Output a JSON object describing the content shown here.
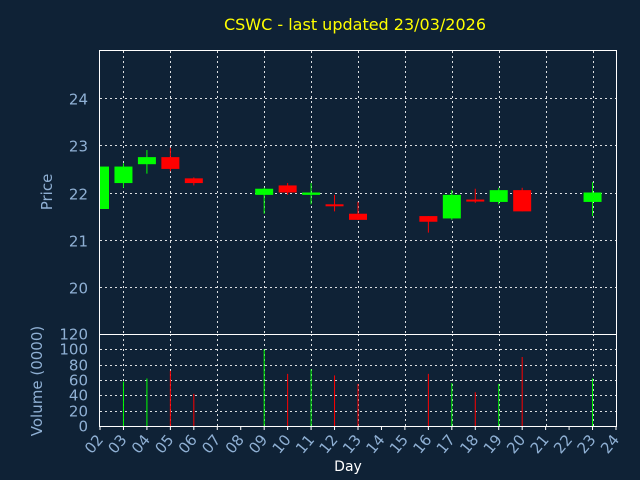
{
  "chart_data": {
    "type": "candlestick",
    "title": "CSWC - last updated 23/03/2026",
    "xlabel": "Day",
    "price_axis": {
      "label": "Price",
      "ylim": [
        19,
        25
      ],
      "ticks": [
        20,
        21,
        22,
        23,
        24
      ]
    },
    "volume_axis": {
      "label": "Volume (0000)",
      "ylim": [
        0,
        120
      ],
      "ticks": [
        0,
        20,
        40,
        60,
        80,
        100,
        120
      ]
    },
    "x_ticks": [
      "02",
      "03",
      "04",
      "05",
      "06",
      "07",
      "08",
      "09",
      "10",
      "11",
      "12",
      "13",
      "14",
      "15",
      "16",
      "17",
      "18",
      "19",
      "20",
      "21",
      "22",
      "23",
      "24"
    ],
    "grid": true,
    "colors": {
      "up": "#00ff00",
      "down": "#ff0000",
      "title": "#ffff00",
      "axis_text": "#8fb0d4",
      "background": "#0f2236"
    },
    "candles": [
      {
        "day": "02",
        "open": 21.65,
        "close": 22.55,
        "high": 22.55,
        "low": 21.65,
        "volume": 0
      },
      {
        "day": "03",
        "open": 22.2,
        "close": 22.55,
        "high": 22.62,
        "low": 22.1,
        "volume": 58
      },
      {
        "day": "04",
        "open": 22.6,
        "close": 22.75,
        "high": 22.9,
        "low": 22.4,
        "volume": 62
      },
      {
        "day": "05",
        "open": 22.75,
        "close": 22.5,
        "high": 22.95,
        "low": 22.45,
        "volume": 72
      },
      {
        "day": "06",
        "open": 22.3,
        "close": 22.2,
        "high": 22.32,
        "low": 22.15,
        "volume": 42
      },
      {
        "day": "09",
        "open": 21.95,
        "close": 22.08,
        "high": 22.1,
        "low": 21.55,
        "volume": 100
      },
      {
        "day": "10",
        "open": 22.15,
        "close": 22.0,
        "high": 22.2,
        "low": 21.95,
        "volume": 68
      },
      {
        "day": "11",
        "open": 21.95,
        "close": 22.0,
        "high": 22.2,
        "low": 21.75,
        "volume": 74
      },
      {
        "day": "12",
        "open": 21.75,
        "close": 21.73,
        "high": 21.95,
        "low": 21.6,
        "volume": 66
      },
      {
        "day": "13",
        "open": 21.55,
        "close": 21.42,
        "high": 21.8,
        "low": 21.42,
        "volume": 55
      },
      {
        "day": "16",
        "open": 21.5,
        "close": 21.38,
        "high": 21.5,
        "low": 21.15,
        "volume": 68
      },
      {
        "day": "17",
        "open": 21.45,
        "close": 21.95,
        "high": 22.05,
        "low": 21.42,
        "volume": 56
      },
      {
        "day": "18",
        "open": 21.85,
        "close": 21.82,
        "high": 22.08,
        "low": 21.78,
        "volume": 44
      },
      {
        "day": "19",
        "open": 21.8,
        "close": 22.05,
        "high": 22.1,
        "low": 21.75,
        "volume": 55
      },
      {
        "day": "20",
        "open": 22.05,
        "close": 21.6,
        "high": 22.1,
        "low": 21.6,
        "volume": 90
      },
      {
        "day": "23",
        "open": 21.8,
        "close": 22.0,
        "high": 22.22,
        "low": 21.5,
        "volume": 62
      }
    ]
  }
}
